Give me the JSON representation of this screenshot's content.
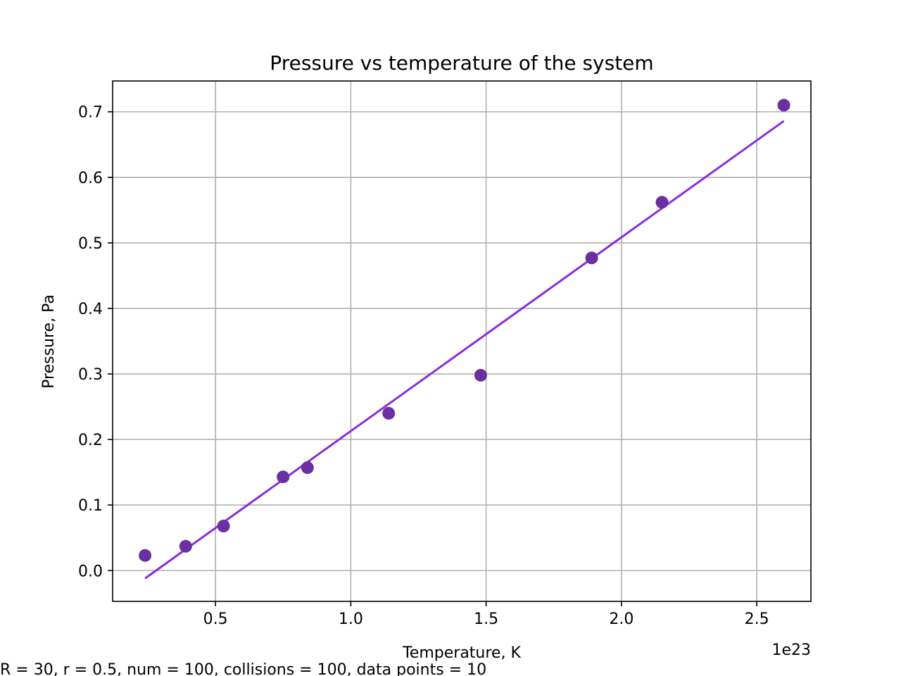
{
  "chart_data": {
    "type": "scatter",
    "title": "Pressure vs temperature of the system",
    "xlabel": "Temperature, K",
    "ylabel": "Pressure, Pa",
    "x_offset_label": "1e23",
    "caption": "R = 30, r = 0.5, num = 100, collisions = 100, data points = 10",
    "xlim": [
      0.12,
      2.7
    ],
    "ylim": [
      -0.047,
      0.747
    ],
    "x_ticks": [
      0.5,
      1.0,
      1.5,
      2.0,
      2.5
    ],
    "x_tick_labels": [
      "0.5",
      "1.0",
      "1.5",
      "2.0",
      "2.5"
    ],
    "y_ticks": [
      0.0,
      0.1,
      0.2,
      0.3,
      0.4,
      0.5,
      0.6,
      0.7
    ],
    "y_tick_labels": [
      "0.0",
      "0.1",
      "0.2",
      "0.3",
      "0.4",
      "0.5",
      "0.6",
      "0.7"
    ],
    "grid": true,
    "legend": "none",
    "series": [
      {
        "kind": "scatter",
        "color": "#6a2fa0",
        "x": [
          0.24,
          0.39,
          0.53,
          0.75,
          0.84,
          1.14,
          1.48,
          1.89,
          2.15,
          2.6
        ],
        "y": [
          0.023,
          0.037,
          0.068,
          0.143,
          0.157,
          0.24,
          0.298,
          0.477,
          0.562,
          0.71
        ]
      },
      {
        "kind": "line",
        "color": "#8a2be2",
        "x": [
          0.24,
          2.6
        ],
        "y": [
          -0.012,
          0.686
        ]
      }
    ]
  }
}
